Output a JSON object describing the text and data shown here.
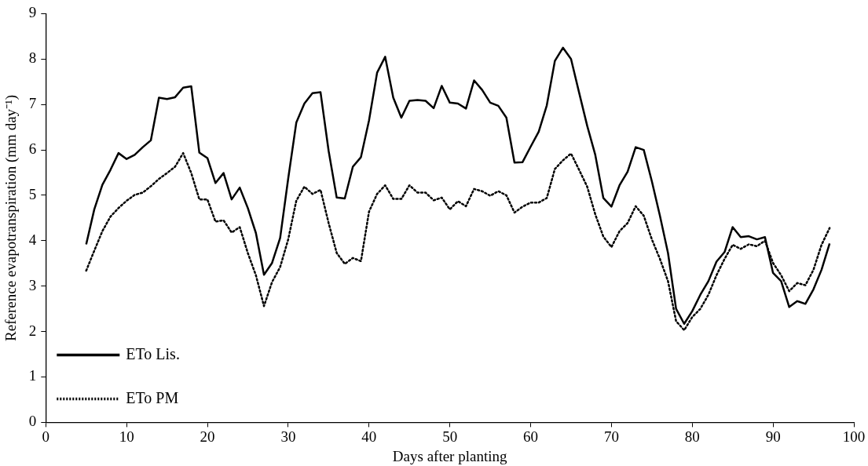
{
  "chart_data": {
    "type": "line",
    "xlabel": "Days after planting",
    "ylabel": "Reference evapotranspiration (mm day⁻¹)",
    "x": [
      5,
      6,
      7,
      8,
      9,
      10,
      11,
      12,
      13,
      14,
      15,
      16,
      17,
      18,
      19,
      20,
      21,
      22,
      23,
      24,
      25,
      26,
      27,
      28,
      29,
      30,
      31,
      32,
      33,
      34,
      35,
      36,
      37,
      38,
      39,
      40,
      41,
      42,
      43,
      44,
      45,
      46,
      47,
      48,
      49,
      50,
      51,
      52,
      53,
      54,
      55,
      56,
      57,
      58,
      59,
      60,
      61,
      62,
      63,
      64,
      65,
      66,
      67,
      68,
      69,
      70,
      71,
      72,
      73,
      74,
      75,
      76,
      77,
      78,
      79,
      80,
      81,
      82,
      83,
      84,
      85,
      86,
      87,
      88,
      89,
      90,
      91,
      92,
      93,
      94,
      95,
      96,
      97
    ],
    "series": [
      {
        "name": "ETo Lis.",
        "color": "#000000",
        "line_style": "solid",
        "values": [
          3.92,
          4.69,
          5.23,
          5.56,
          5.93,
          5.8,
          5.89,
          6.06,
          6.21,
          7.15,
          7.12,
          7.16,
          7.37,
          7.4,
          5.94,
          5.82,
          5.27,
          5.49,
          4.91,
          5.17,
          4.72,
          4.17,
          3.25,
          3.51,
          4.06,
          5.37,
          6.6,
          7.02,
          7.25,
          7.27,
          5.98,
          4.95,
          4.93,
          5.63,
          5.84,
          6.65,
          7.7,
          8.05,
          7.15,
          6.71,
          7.08,
          7.1,
          7.08,
          6.92,
          7.41,
          7.04,
          7.02,
          6.91,
          7.53,
          7.32,
          7.04,
          6.97,
          6.71,
          5.72,
          5.73,
          6.07,
          6.4,
          6.98,
          7.96,
          8.25,
          8.0,
          7.26,
          6.53,
          5.89,
          4.94,
          4.75,
          5.22,
          5.52,
          6.06,
          6.0,
          5.31,
          4.55,
          3.73,
          2.5,
          2.17,
          2.45,
          2.81,
          3.11,
          3.54,
          3.75,
          4.3,
          4.08,
          4.1,
          4.03,
          4.08,
          3.29,
          3.11,
          2.54,
          2.67,
          2.61,
          2.93,
          3.36,
          3.94
        ]
      },
      {
        "name": "ETo PM",
        "color": "#000000",
        "line_style": "dotted",
        "values": [
          3.34,
          3.78,
          4.21,
          4.53,
          4.72,
          4.88,
          5.01,
          5.06,
          5.2,
          5.36,
          5.49,
          5.63,
          5.93,
          5.49,
          4.91,
          4.91,
          4.42,
          4.45,
          4.18,
          4.3,
          3.73,
          3.24,
          2.56,
          3.09,
          3.42,
          4.03,
          4.88,
          5.19,
          5.03,
          5.12,
          4.39,
          3.73,
          3.49,
          3.62,
          3.55,
          4.64,
          5.03,
          5.22,
          4.92,
          4.92,
          5.22,
          5.06,
          5.06,
          4.89,
          4.95,
          4.69,
          4.87,
          4.76,
          5.14,
          5.09,
          4.99,
          5.09,
          5.0,
          4.62,
          4.75,
          4.84,
          4.84,
          4.94,
          5.58,
          5.77,
          5.92,
          5.56,
          5.19,
          4.58,
          4.09,
          3.86,
          4.21,
          4.39,
          4.76,
          4.55,
          4.03,
          3.6,
          3.11,
          2.23,
          2.03,
          2.32,
          2.5,
          2.81,
          3.24,
          3.6,
          3.91,
          3.82,
          3.92,
          3.88,
          4.0,
          3.51,
          3.24,
          2.89,
          3.07,
          3.02,
          3.36,
          3.91,
          4.28
        ]
      }
    ],
    "xlim": [
      0,
      100
    ],
    "xticks": [
      0,
      10,
      20,
      30,
      40,
      50,
      60,
      70,
      80,
      90,
      100
    ],
    "ylim": [
      0,
      9
    ],
    "yticks": [
      0,
      1,
      2,
      3,
      4,
      5,
      6,
      7,
      8,
      9
    ],
    "grid": false,
    "legend": "bottom left",
    "marker": "none"
  }
}
